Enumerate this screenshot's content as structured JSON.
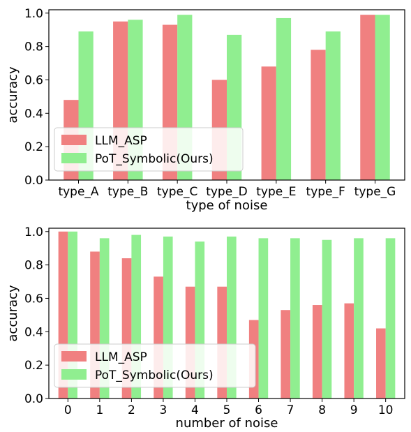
{
  "chart_data": [
    {
      "type": "bar",
      "categories": [
        "type_A",
        "type_B",
        "type_C",
        "type_D",
        "type_E",
        "type_F",
        "type_G"
      ],
      "series": [
        {
          "name": "LLM_ASP",
          "color": "#f08080",
          "values": [
            0.48,
            0.95,
            0.93,
            0.6,
            0.68,
            0.78,
            0.99
          ]
        },
        {
          "name": "PoT_Symbolic(Ours)",
          "color": "#90ee90",
          "values": [
            0.89,
            0.96,
            0.99,
            0.87,
            0.97,
            0.89,
            0.99
          ]
        }
      ],
      "xlabel": "type of noise",
      "ylabel": "accuracy",
      "ylim": [
        0,
        1.0
      ],
      "yticks": [
        "0.0",
        "0.2",
        "0.4",
        "0.6",
        "0.8",
        "1.0"
      ],
      "grid": false,
      "legend_position": "lower-left"
    },
    {
      "type": "bar",
      "categories": [
        "0",
        "1",
        "2",
        "3",
        "4",
        "5",
        "6",
        "7",
        "8",
        "9",
        "10"
      ],
      "series": [
        {
          "name": "LLM_ASP",
          "color": "#f08080",
          "values": [
            1.0,
            0.88,
            0.84,
            0.73,
            0.67,
            0.67,
            0.47,
            0.53,
            0.56,
            0.57,
            0.42
          ]
        },
        {
          "name": "PoT_Symbolic(Ours)",
          "color": "#90ee90",
          "values": [
            1.0,
            0.96,
            0.98,
            0.97,
            0.94,
            0.97,
            0.96,
            0.96,
            0.95,
            0.96,
            0.96
          ]
        }
      ],
      "xlabel": "number of noise",
      "ylabel": "accuracy",
      "ylim": [
        0,
        1.0
      ],
      "yticks": [
        "0.0",
        "0.2",
        "0.4",
        "0.6",
        "0.8",
        "1.0"
      ],
      "grid": false,
      "legend_position": "lower-left"
    }
  ]
}
